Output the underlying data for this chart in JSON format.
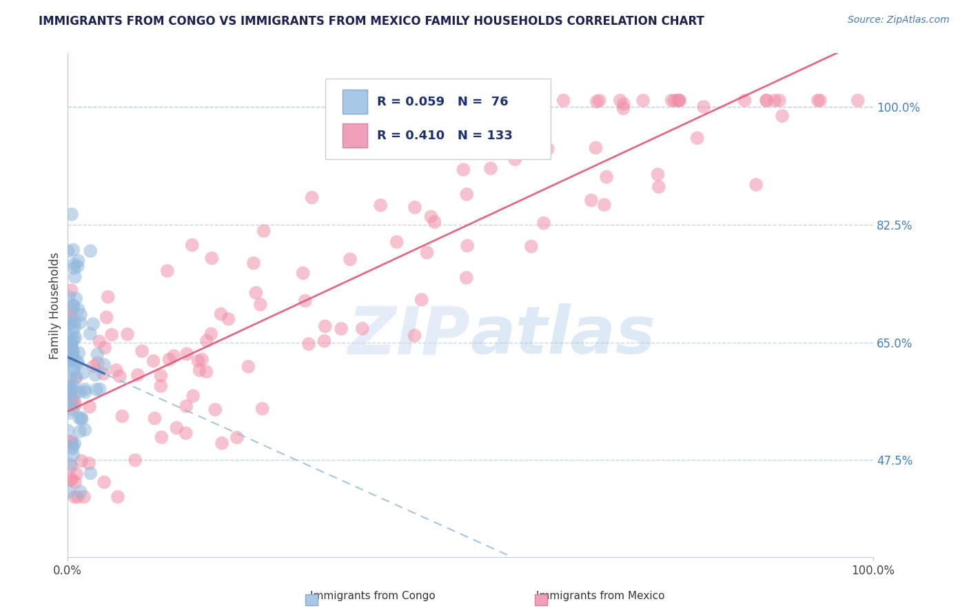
{
  "title": "IMMIGRANTS FROM CONGO VS IMMIGRANTS FROM MEXICO FAMILY HOUSEHOLDS CORRELATION CHART",
  "source": "Source: ZipAtlas.com",
  "ylabel": "Family Households",
  "right_ytick_labels": [
    "100.0%",
    "82.5%",
    "65.0%",
    "47.5%"
  ],
  "right_ytick_values": [
    1.0,
    0.825,
    0.65,
    0.475
  ],
  "watermark_text": "ZIP atlas",
  "congo_color": "#92b8dc",
  "mexico_color": "#f090a8",
  "congo_line_color": "#3a6ab0",
  "mexico_line_color": "#e05878",
  "congo_dashed_color": "#90b8d8",
  "grid_color": "#c8d4e4",
  "background_color": "#ffffff",
  "title_color": "#1a2050",
  "source_color": "#4878b0",
  "legend_text_color": "#1a3070",
  "right_label_color": "#4080c0",
  "xlim": [
    0.0,
    1.0
  ],
  "ylim": [
    0.33,
    1.08
  ],
  "congo_R": 0.059,
  "congo_N": 76,
  "mexico_R": 0.41,
  "mexico_N": 133
}
